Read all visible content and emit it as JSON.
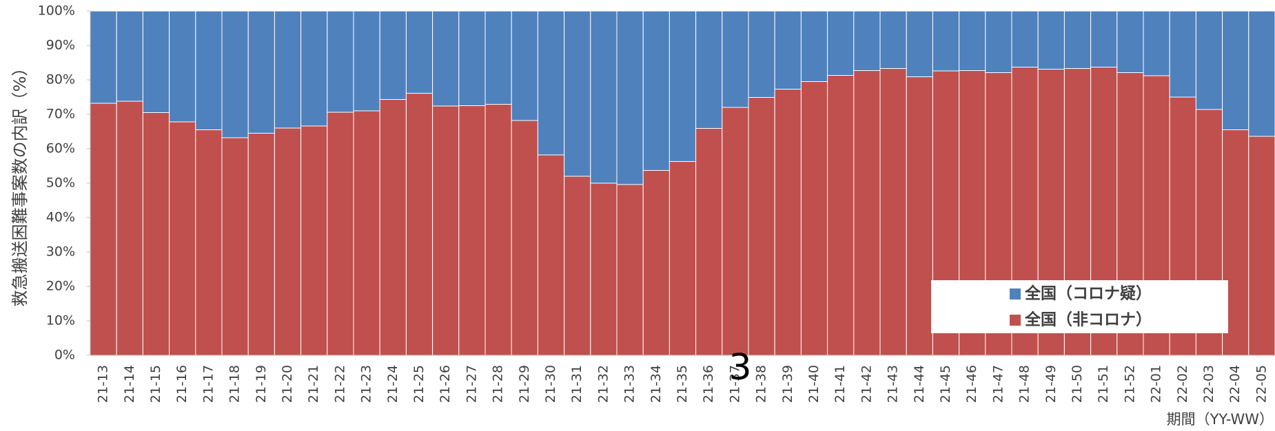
{
  "chart_data": {
    "type": "stacked_bar",
    "y_axis_label": "救急搬送困難事案数の内訳（%）",
    "x_axis_label": "期間（YY-WW）",
    "page_number": "3",
    "categories": [
      "21-13",
      "21-14",
      "21-15",
      "21-16",
      "21-17",
      "21-18",
      "21-19",
      "21-20",
      "21-21",
      "21-22",
      "21-23",
      "21-24",
      "21-25",
      "21-26",
      "21-27",
      "21-28",
      "21-29",
      "21-30",
      "21-31",
      "21-32",
      "21-33",
      "21-34",
      "21-35",
      "21-36",
      "21-37",
      "21-38",
      "21-39",
      "21-40",
      "21-41",
      "21-42",
      "21-43",
      "21-44",
      "21-45",
      "21-46",
      "21-47",
      "21-48",
      "21-49",
      "21-50",
      "21-51",
      "21-52",
      "22-01",
      "22-02",
      "22-03",
      "22-04",
      "22-05"
    ],
    "series": [
      {
        "name": "全国（非コロナ）",
        "color": "#c0504d",
        "values": [
          73.2,
          73.8,
          70.5,
          67.8,
          65.5,
          63.2,
          64.5,
          66,
          66.6,
          70.6,
          71,
          74.3,
          76.1,
          72.4,
          72.5,
          72.9,
          68.2,
          58.2,
          52,
          50,
          49.6,
          53.7,
          56.3,
          65.9,
          72,
          74.9,
          77.3,
          79.5,
          81.3,
          82.7,
          83.3,
          80.9,
          82.6,
          82.7,
          82.1,
          83.7,
          83.1,
          83.3,
          83.7,
          82.1,
          81.2,
          75,
          71.4,
          65.5,
          63.6
        ]
      },
      {
        "name": "全国（コロナ疑）",
        "color": "#4f81bd",
        "values": [
          26.8,
          26.2,
          29.5,
          32.2,
          34.5,
          36.8,
          35.5,
          34,
          33.4,
          29.4,
          29,
          25.7,
          23.9,
          27.6,
          27.5,
          27.1,
          31.8,
          41.8,
          48,
          50,
          50.4,
          46.3,
          43.7,
          34.1,
          28,
          25.1,
          22.7,
          20.5,
          18.7,
          17.3,
          16.7,
          19.1,
          17.4,
          17.3,
          17.9,
          16.3,
          16.9,
          16.7,
          16.3,
          17.9,
          18.8,
          25,
          28.6,
          34.5,
          36.4
        ]
      }
    ],
    "ylim": [
      0,
      100
    ],
    "yticks": [
      {
        "value": 0,
        "label": "0%"
      },
      {
        "value": 10,
        "label": "10%"
      },
      {
        "value": 20,
        "label": "20%"
      },
      {
        "value": 30,
        "label": "30%"
      },
      {
        "value": 40,
        "label": "40%"
      },
      {
        "value": 50,
        "label": "50%"
      },
      {
        "value": 60,
        "label": "60%"
      },
      {
        "value": 70,
        "label": "70%"
      },
      {
        "value": 80,
        "label": "80%"
      },
      {
        "value": 90,
        "label": "90%"
      },
      {
        "value": 100,
        "label": "100%"
      }
    ],
    "legend": "lower right"
  }
}
